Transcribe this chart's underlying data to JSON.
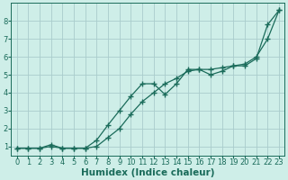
{
  "title": "",
  "xlabel": "Humidex (Indice chaleur)",
  "ylabel": "",
  "xlim": [
    -0.5,
    23.5
  ],
  "ylim": [
    0.5,
    9.0
  ],
  "yticks": [
    1,
    2,
    3,
    4,
    5,
    6,
    7,
    8
  ],
  "xticks": [
    0,
    1,
    2,
    3,
    4,
    5,
    6,
    7,
    8,
    9,
    10,
    11,
    12,
    13,
    14,
    15,
    16,
    17,
    18,
    19,
    20,
    21,
    22,
    23
  ],
  "bg_color": "#ceeee8",
  "grid_color": "#aacccc",
  "line_color": "#1a6b5a",
  "line1_x": [
    0,
    1,
    2,
    3,
    4,
    5,
    6,
    7,
    8,
    9,
    10,
    11,
    12,
    13,
    14,
    15,
    16,
    17,
    18,
    19,
    20,
    21,
    22,
    23
  ],
  "line1_y": [
    0.9,
    0.9,
    0.9,
    1.1,
    0.9,
    0.9,
    0.9,
    1.0,
    1.5,
    2.0,
    2.8,
    3.5,
    4.0,
    4.5,
    4.8,
    5.2,
    5.3,
    5.3,
    5.4,
    5.5,
    5.6,
    6.0,
    7.0,
    8.6
  ],
  "line2_x": [
    0,
    1,
    2,
    3,
    4,
    5,
    6,
    7,
    8,
    9,
    10,
    11,
    12,
    13,
    14,
    15,
    16,
    17,
    18,
    19,
    20,
    21,
    22,
    23
  ],
  "line2_y": [
    0.9,
    0.9,
    0.9,
    1.0,
    0.9,
    0.9,
    0.9,
    1.35,
    2.2,
    3.0,
    3.8,
    4.5,
    4.5,
    3.9,
    4.5,
    5.3,
    5.3,
    5.0,
    5.2,
    5.5,
    5.5,
    5.9,
    7.8,
    8.6
  ],
  "marker": "+",
  "marker_size": 4,
  "line_width": 0.9,
  "xlabel_fontsize": 7.5,
  "tick_fontsize": 6.0
}
